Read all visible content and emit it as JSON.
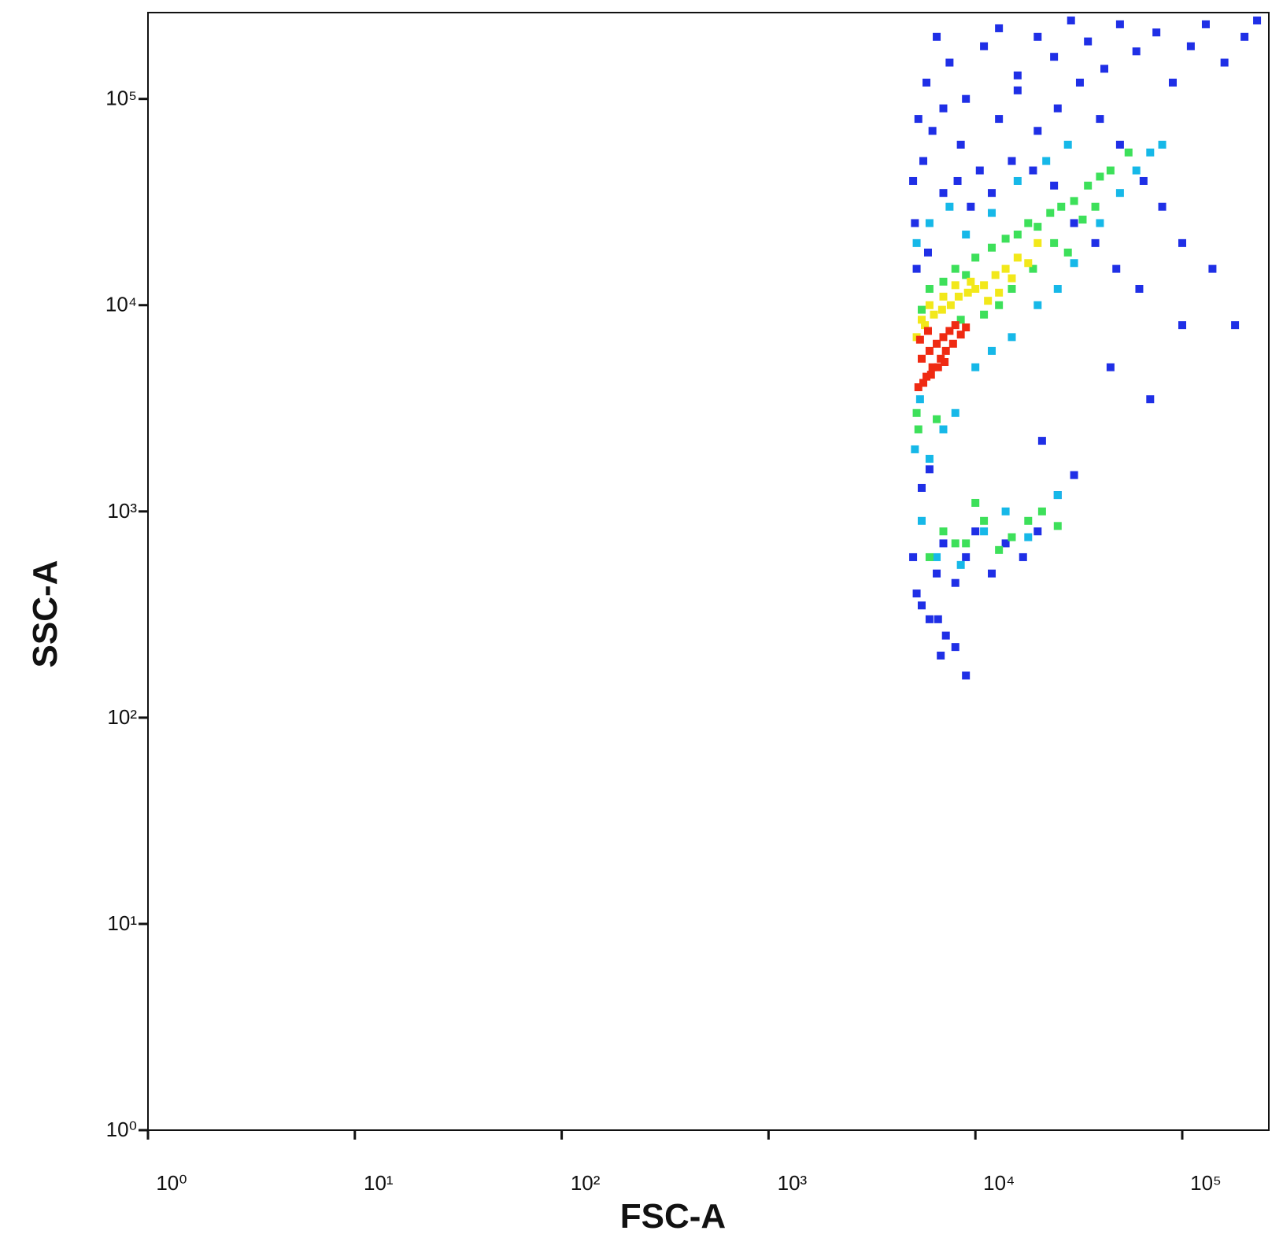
{
  "chart_data": {
    "type": "scatter",
    "x_label": "FSC-A",
    "y_label": "SSC-A",
    "xscale": "log",
    "yscale": "log",
    "xlim": [
      1,
      262144
    ],
    "ylim": [
      1,
      262144
    ],
    "xticks": [
      {
        "value": 1,
        "label": "10⁰"
      },
      {
        "value": 10,
        "label": "10¹"
      },
      {
        "value": 100,
        "label": "10²"
      },
      {
        "value": 1000,
        "label": "10³"
      },
      {
        "value": 10000,
        "label": "10⁴"
      },
      {
        "value": 100000,
        "label": "10⁵"
      }
    ],
    "yticks": [
      {
        "value": 1,
        "label": "10⁰"
      },
      {
        "value": 10,
        "label": "10¹"
      },
      {
        "value": 100,
        "label": "10²"
      },
      {
        "value": 1000,
        "label": "10³"
      },
      {
        "value": 10000,
        "label": "10⁴"
      },
      {
        "value": 100000,
        "label": "10⁵"
      }
    ],
    "grid": false,
    "series": [
      {
        "color": "#1f2fe6",
        "x": [
          5000,
          5200,
          5500,
          6000,
          6500,
          7000,
          8000,
          9000,
          10000,
          12000,
          14000,
          17000,
          20000,
          25000,
          30000,
          5000,
          5300,
          5800,
          6500,
          7500,
          9000,
          11000,
          13000,
          16000,
          20000,
          24000,
          29000,
          35000,
          42000,
          50000,
          60000,
          75000,
          90000,
          110000,
          130000,
          160000,
          200000,
          230000,
          5100,
          5600,
          6200,
          7000,
          8500,
          10500,
          13000,
          16000,
          20000,
          25000,
          32000,
          40000,
          50000,
          65000,
          80000,
          100000,
          140000,
          180000,
          5200,
          5900,
          7000,
          8200,
          9500,
          12000,
          15000,
          19000,
          24000,
          30000,
          38000,
          48000,
          62000,
          6600,
          7200,
          8000,
          9000,
          6800,
          6000,
          5500,
          21000,
          45000,
          70000,
          100000
        ],
        "values": [
          600,
          400,
          350,
          300,
          500,
          700,
          450,
          600,
          800,
          500,
          700,
          600,
          800,
          1200,
          1500,
          40000,
          80000,
          120000,
          200000,
          150000,
          100000,
          180000,
          220000,
          130000,
          200000,
          160000,
          240000,
          190000,
          140000,
          230000,
          170000,
          210000,
          120000,
          180000,
          230000,
          150000,
          200000,
          240000,
          25000,
          50000,
          70000,
          90000,
          60000,
          45000,
          80000,
          110000,
          70000,
          90000,
          120000,
          80000,
          60000,
          40000,
          30000,
          20000,
          15000,
          8000,
          15000,
          18000,
          35000,
          40000,
          30000,
          35000,
          50000,
          45000,
          38000,
          25000,
          20000,
          15000,
          12000,
          300,
          250,
          220,
          160,
          200,
          1600,
          1300,
          2200,
          5000,
          3500,
          8000
        ]
      },
      {
        "color": "#16b8e8",
        "x": [
          5100,
          5400,
          6000,
          7000,
          8000,
          10000,
          12000,
          15000,
          20000,
          25000,
          30000,
          40000,
          50000,
          60000,
          70000,
          80000,
          5200,
          6000,
          7500,
          9000,
          12000,
          16000,
          22000,
          28000,
          5500,
          6500,
          8500,
          11000,
          14000,
          18000,
          25000
        ],
        "values": [
          2000,
          3500,
          1800,
          2500,
          3000,
          5000,
          6000,
          7000,
          10000,
          12000,
          16000,
          25000,
          35000,
          45000,
          55000,
          60000,
          20000,
          25000,
          30000,
          22000,
          28000,
          40000,
          50000,
          60000,
          900,
          600,
          550,
          800,
          1000,
          750,
          1200
        ]
      },
      {
        "color": "#3de05a",
        "x": [
          5200,
          5500,
          6000,
          7000,
          8000,
          9000,
          10000,
          12000,
          14000,
          16000,
          18000,
          20000,
          23000,
          26000,
          30000,
          35000,
          40000,
          5300,
          6500,
          8500,
          11000,
          13000,
          15000,
          19000,
          24000,
          28000,
          33000,
          38000,
          45000,
          55000,
          7000,
          9000,
          11000,
          13000,
          15000,
          18000,
          21000,
          25000,
          6000,
          8000,
          10000
        ],
        "values": [
          3000,
          9500,
          12000,
          13000,
          15000,
          14000,
          17000,
          19000,
          21000,
          22000,
          25000,
          24000,
          28000,
          30000,
          32000,
          38000,
          42000,
          2500,
          2800,
          8500,
          9000,
          10000,
          12000,
          15000,
          20000,
          18000,
          26000,
          30000,
          45000,
          55000,
          800,
          700,
          900,
          650,
          750,
          900,
          1000,
          850,
          600,
          700,
          1100
        ]
      },
      {
        "color": "#f2e81a",
        "x": [
          5200,
          5700,
          6300,
          6900,
          7600,
          8300,
          9200,
          10000,
          11000,
          12500,
          14000,
          16000,
          5500,
          6000,
          7000,
          8000,
          9500,
          11500,
          13000,
          15000,
          18000,
          20000
        ],
        "values": [
          7000,
          8000,
          9000,
          9500,
          10000,
          11000,
          11500,
          12000,
          12500,
          14000,
          15000,
          17000,
          8500,
          10000,
          11000,
          12500,
          13000,
          10500,
          11500,
          13500,
          16000,
          20000
        ]
      },
      {
        "color": "#ef2a12",
        "x": [
          5500,
          6000,
          6500,
          7000,
          7500,
          8000,
          5800,
          6200,
          6800,
          7200,
          7800,
          8500,
          9000,
          5300,
          5600,
          6100,
          6600,
          7100,
          5400,
          5900
        ],
        "values": [
          5500,
          6000,
          6500,
          7000,
          7500,
          8000,
          4500,
          5000,
          5500,
          6000,
          6500,
          7200,
          7800,
          4000,
          4200,
          4600,
          5000,
          5300,
          6800,
          7500
        ]
      }
    ]
  }
}
